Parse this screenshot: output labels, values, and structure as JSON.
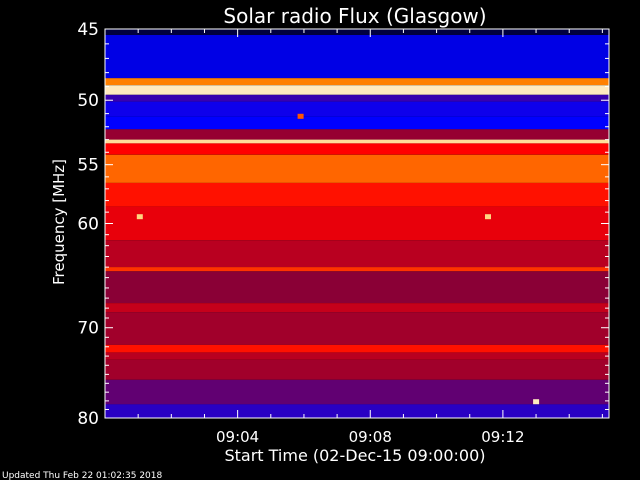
{
  "chart_data": {
    "type": "heatmap",
    "title": "Solar radio Flux (Glasgow)",
    "xlabel": "Start Time (02-Dec-15 09:00:00)",
    "ylabel": "Frequency [MHz]",
    "x_unit": "minutes after start",
    "xlim": [
      0,
      15.2
    ],
    "ylim": [
      80,
      45
    ],
    "y_scale": "log",
    "x_ticks": [
      {
        "value": 4,
        "label": "09:04"
      },
      {
        "value": 8,
        "label": "09:08"
      },
      {
        "value": 12,
        "label": "09:12"
      }
    ],
    "y_ticks": [
      {
        "value": 45,
        "label": "45"
      },
      {
        "value": 50,
        "label": "50"
      },
      {
        "value": 55,
        "label": "55"
      },
      {
        "value": 60,
        "label": "60"
      },
      {
        "value": 70,
        "label": "70"
      },
      {
        "value": 80,
        "label": "80"
      }
    ],
    "colormap": [
      "#000000",
      "#0000ff",
      "#8a0036",
      "#ff0000",
      "#ffaa00",
      "#ffffff"
    ],
    "intensity_bands": [
      {
        "freq_mhz": [
          45.0,
          45.4
        ],
        "level": 0.05
      },
      {
        "freq_mhz": [
          45.4,
          48.4
        ],
        "level": 0.18
      },
      {
        "freq_mhz": [
          48.4,
          48.9
        ],
        "level": 0.75
      },
      {
        "freq_mhz": [
          48.9,
          49.6
        ],
        "level": 0.95
      },
      {
        "freq_mhz": [
          49.6,
          50.1
        ],
        "level": 0.28
      },
      {
        "freq_mhz": [
          50.1,
          51.2
        ],
        "level": 0.22
      },
      {
        "freq_mhz": [
          51.2,
          52.2
        ],
        "level": 0.2
      },
      {
        "freq_mhz": [
          52.2,
          53.0
        ],
        "level": 0.42
      },
      {
        "freq_mhz": [
          53.0,
          53.3
        ],
        "level": 0.92
      },
      {
        "freq_mhz": [
          53.3,
          54.2
        ],
        "level": 0.6
      },
      {
        "freq_mhz": [
          54.2,
          56.5
        ],
        "level": 0.72
      },
      {
        "freq_mhz": [
          56.5,
          58.5
        ],
        "level": 0.62
      },
      {
        "freq_mhz": [
          58.5,
          61.5
        ],
        "level": 0.56
      },
      {
        "freq_mhz": [
          61.5,
          64.0
        ],
        "level": 0.48
      },
      {
        "freq_mhz": [
          64.0,
          64.4
        ],
        "level": 0.66
      },
      {
        "freq_mhz": [
          64.4,
          67.5
        ],
        "level": 0.4
      },
      {
        "freq_mhz": [
          67.5,
          68.4
        ],
        "level": 0.5
      },
      {
        "freq_mhz": [
          68.4,
          71.8
        ],
        "level": 0.44
      },
      {
        "freq_mhz": [
          71.8,
          72.6
        ],
        "level": 0.62
      },
      {
        "freq_mhz": [
          72.6,
          73.4
        ],
        "level": 0.48
      },
      {
        "freq_mhz": [
          73.4,
          75.6
        ],
        "level": 0.44
      },
      {
        "freq_mhz": [
          75.6,
          78.4
        ],
        "level": 0.34
      },
      {
        "freq_mhz": [
          78.4,
          80.0
        ],
        "level": 0.26
      }
    ],
    "bright_spots": [
      {
        "time_min": 1.05,
        "freq_mhz": 59.4,
        "level": 0.9
      },
      {
        "time_min": 11.55,
        "freq_mhz": 59.4,
        "level": 0.9
      },
      {
        "time_min": 5.9,
        "freq_mhz": 51.2,
        "level": 0.7
      },
      {
        "time_min": 13.0,
        "freq_mhz": 78.1,
        "level": 0.95
      }
    ],
    "grid": false
  },
  "footer": {
    "updated": "Updated Thu Feb 22 01:02:35 2018"
  }
}
